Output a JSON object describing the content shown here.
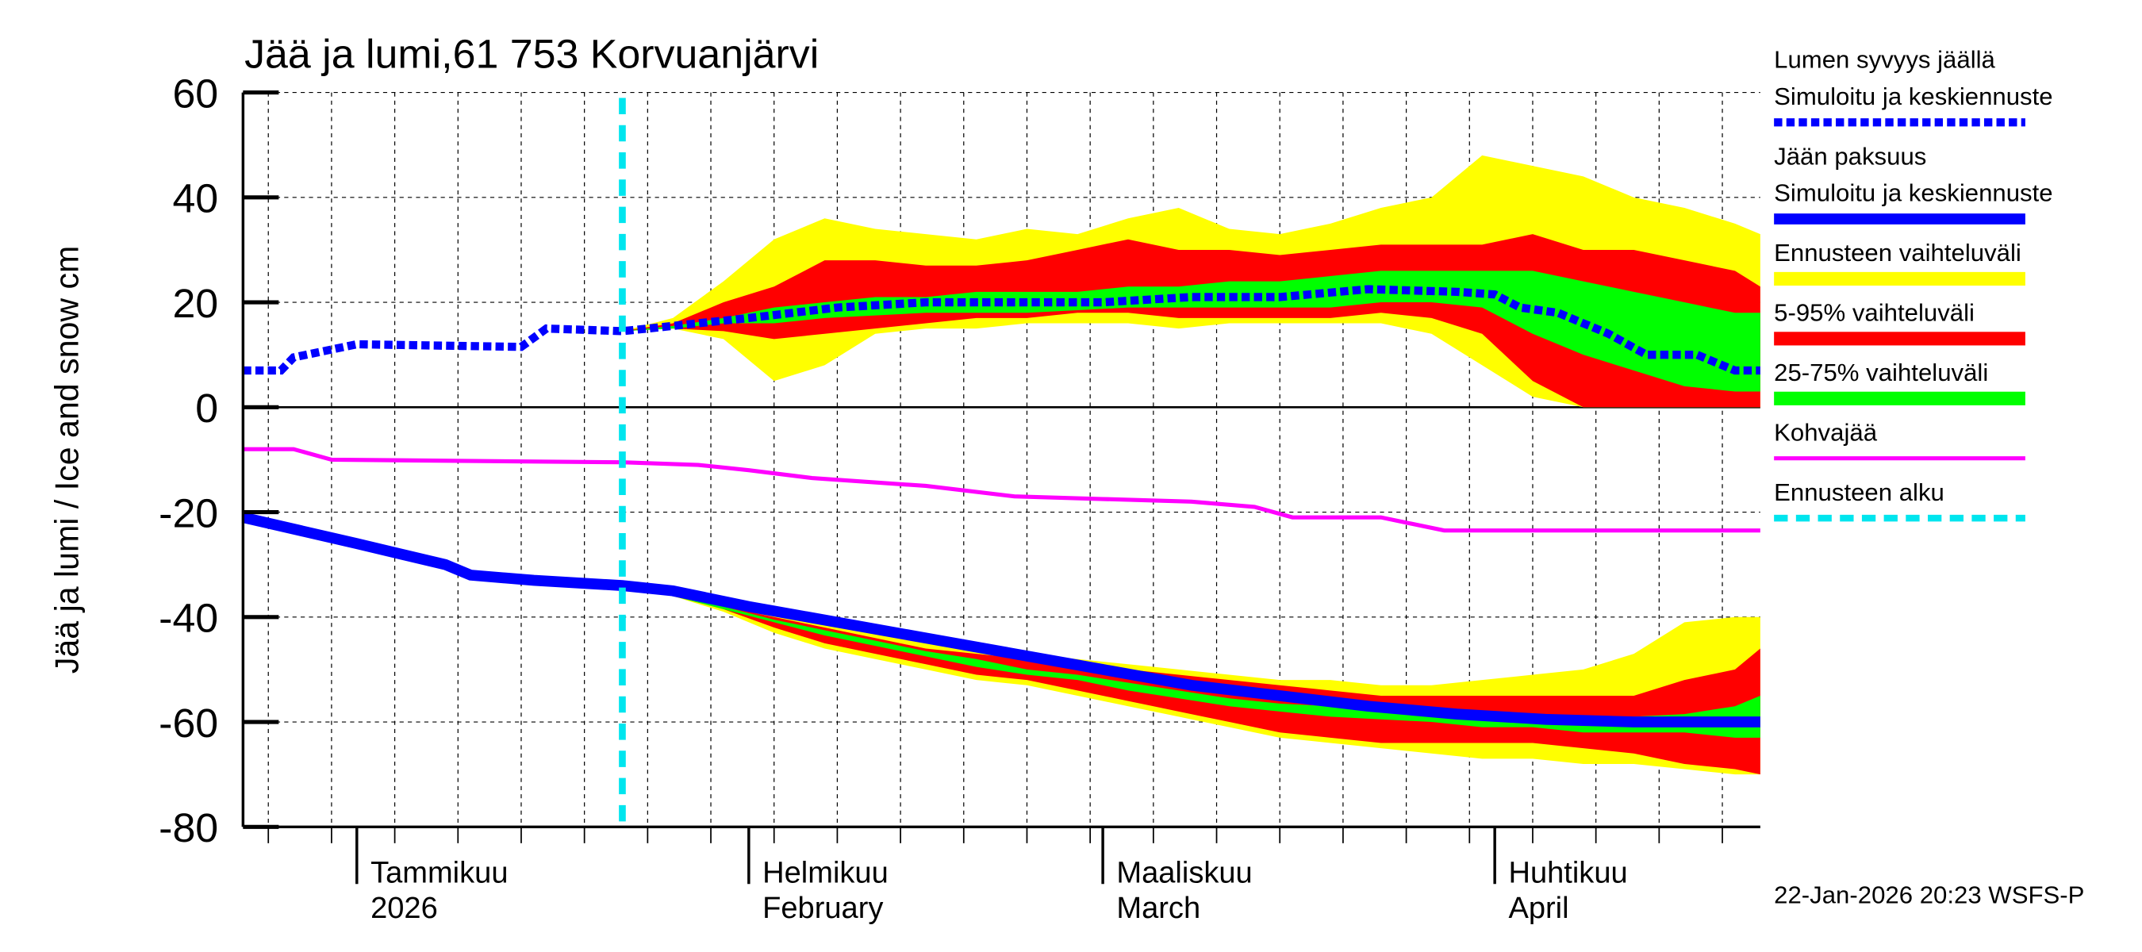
{
  "chart_data": {
    "type": "area",
    "title": "Jää ja lumi,61 753 Korvuanjärvi",
    "ylabel": "Jää ja lumi / Ice and snow    cm",
    "ylim": [
      -80,
      60
    ],
    "yticks": [
      60,
      40,
      20,
      0,
      -20,
      -40,
      -60,
      -80
    ],
    "xlim": [
      "2025-12-23",
      "2026-04-22"
    ],
    "grid": true,
    "legend_position": "right",
    "month_labels": [
      {
        "date": "2026-01-01",
        "fi": "Tammikuu",
        "en": "2026"
      },
      {
        "date": "2026-02-01",
        "fi": "Helmikuu",
        "en": "February"
      },
      {
        "date": "2026-03-01",
        "fi": "Maaliskuu",
        "en": "March"
      },
      {
        "date": "2026-04-01",
        "fi": "Huhtikuu",
        "en": "April"
      }
    ],
    "forecast_start": "2026-01-22",
    "footer": "22-Jan-2026 20:23 WSFS-P",
    "legend": [
      {
        "label1": "Lumen syvyys jäällä",
        "label2": "Simuloitu ja keskiennuste",
        "style": "dotted",
        "color": "#0000ff"
      },
      {
        "label1": "Jään paksuus",
        "label2": "Simuloitu ja keskiennuste",
        "style": "solid-thick",
        "color": "#0000ff"
      },
      {
        "label1": "Ennusteen vaihteluväli",
        "style": "band",
        "color": "#ffff00"
      },
      {
        "label1": "5-95% vaihteluväli",
        "style": "band",
        "color": "#ff0000"
      },
      {
        "label1": "25-75% vaihteluväli",
        "style": "band",
        "color": "#00ff00"
      },
      {
        "label1": "Kohvajää",
        "style": "solid",
        "color": "#ff00ff"
      },
      {
        "label1": "Ennusteen alku",
        "style": "dashed",
        "color": "#00e5ee"
      }
    ],
    "snow_depth": {
      "x": [
        "2025-12-23",
        "2025-12-26",
        "2025-12-27",
        "2025-12-30",
        "2026-01-01",
        "2026-01-14",
        "2026-01-16",
        "2026-01-22",
        "2026-01-26",
        "2026-02-01",
        "2026-02-08",
        "2026-02-15",
        "2026-02-22",
        "2026-03-01",
        "2026-03-08",
        "2026-03-15",
        "2026-03-22",
        "2026-03-29",
        "2026-04-01",
        "2026-04-03",
        "2026-04-06",
        "2026-04-10",
        "2026-04-13",
        "2026-04-17",
        "2026-04-20",
        "2026-04-22"
      ],
      "y": [
        7,
        7,
        9.5,
        11,
        12,
        11.5,
        15,
        14.5,
        15.5,
        17,
        19,
        20,
        20,
        20,
        21,
        21,
        22.5,
        22,
        21.5,
        19,
        18,
        14,
        10,
        10,
        7,
        7
      ]
    },
    "ice_thickness": {
      "x": [
        "2025-12-23",
        "2026-01-01",
        "2026-01-08",
        "2026-01-10",
        "2026-01-15",
        "2026-01-22",
        "2026-01-26",
        "2026-02-01",
        "2026-02-08",
        "2026-02-15",
        "2026-02-22",
        "2026-03-01",
        "2026-03-08",
        "2026-03-15",
        "2026-03-22",
        "2026-03-29",
        "2026-04-05",
        "2026-04-12",
        "2026-04-22"
      ],
      "y": [
        -21,
        -26,
        -30,
        -32,
        -33,
        -34,
        -35,
        -38,
        -41,
        -44,
        -47,
        -50,
        -53,
        -55,
        -57,
        -58.5,
        -59.5,
        -60,
        -60
      ]
    },
    "slush_ice": {
      "x": [
        "2025-12-23",
        "2025-12-27",
        "2025-12-30",
        "2026-01-22",
        "2026-01-28",
        "2026-02-01",
        "2026-02-06",
        "2026-02-15",
        "2026-02-22",
        "2026-03-01",
        "2026-03-08",
        "2026-03-13",
        "2026-03-16",
        "2026-03-23",
        "2026-03-28",
        "2026-04-22"
      ],
      "y": [
        -8,
        -8,
        -10,
        -10.5,
        -11,
        -12,
        -13.5,
        -15,
        -17,
        -17.5,
        -18,
        -19,
        -21,
        -21,
        -23.5,
        -23.5
      ]
    },
    "band_dates": [
      "2026-01-22",
      "2026-01-26",
      "2026-01-30",
      "2026-02-03",
      "2026-02-07",
      "2026-02-11",
      "2026-02-15",
      "2026-02-19",
      "2026-02-23",
      "2026-02-27",
      "2026-03-03",
      "2026-03-07",
      "2026-03-11",
      "2026-03-15",
      "2026-03-19",
      "2026-03-23",
      "2026-03-27",
      "2026-03-31",
      "2026-04-04",
      "2026-04-08",
      "2026-04-12",
      "2026-04-16",
      "2026-04-20",
      "2026-04-22"
    ],
    "snow_bands": {
      "range_hi": [
        14.5,
        17,
        24,
        32,
        36,
        34,
        33,
        32,
        34,
        33,
        36,
        38,
        34,
        33,
        35,
        38,
        40,
        48,
        46,
        44,
        40,
        38,
        35,
        33
      ],
      "range_lo": [
        14.5,
        15,
        13,
        5,
        8,
        14,
        15,
        15,
        16,
        16,
        16,
        15,
        16,
        16,
        16,
        16,
        14,
        8,
        2,
        0,
        0,
        0,
        0,
        0
      ],
      "p95": [
        14.5,
        16,
        20,
        23,
        28,
        28,
        27,
        27,
        28,
        30,
        32,
        30,
        30,
        29,
        30,
        31,
        31,
        31,
        33,
        30,
        30,
        28,
        26,
        23
      ],
      "p5": [
        14.5,
        15,
        14.5,
        13,
        14,
        15,
        16,
        17,
        17,
        18,
        18,
        17,
        17,
        17,
        17,
        18,
        17,
        14,
        5,
        0,
        0,
        0,
        0,
        0
      ],
      "p75": [
        14.5,
        15.5,
        17,
        19,
        20,
        21,
        21,
        22,
        22,
        22,
        23,
        23,
        24,
        24,
        25,
        26,
        26,
        26,
        26,
        24,
        22,
        20,
        18,
        18
      ],
      "p25": [
        14.5,
        15,
        16,
        16,
        17,
        17.5,
        18,
        18,
        18,
        18.5,
        19,
        19,
        19,
        19,
        19,
        20,
        20,
        19,
        14,
        10,
        7,
        4,
        3,
        3
      ]
    },
    "ice_bands": {
      "range_hi": [
        -34,
        -36,
        -38,
        -39,
        -41,
        -43,
        -45,
        -46,
        -47,
        -48,
        -49,
        -50,
        -51,
        -52,
        -52,
        -53,
        -53,
        -52,
        -51,
        -50,
        -47,
        -41,
        -40,
        -40
      ],
      "range_lo": [
        -34,
        -36,
        -39,
        -43,
        -46,
        -48,
        -50,
        -52,
        -53,
        -55,
        -57,
        -59,
        -61,
        -63,
        -64,
        -65,
        -66,
        -67,
        -67,
        -68,
        -68,
        -69,
        -70,
        -70
      ],
      "p95": [
        -34,
        -36,
        -38,
        -40,
        -42,
        -44,
        -46,
        -47,
        -48,
        -49,
        -50,
        -51,
        -52,
        -53,
        -54,
        -55,
        -55,
        -55,
        -55,
        -55,
        -55,
        -52,
        -50,
        -46
      ],
      "p5": [
        -34,
        -36,
        -38.5,
        -42,
        -45,
        -47,
        -49,
        -51,
        -52,
        -54,
        -56,
        -58,
        -60,
        -62,
        -63,
        -64,
        -64,
        -64,
        -64,
        -65,
        -66,
        -68,
        -69,
        -70
      ],
      "p75": [
        -34,
        -36,
        -38,
        -40.5,
        -42.5,
        -44.5,
        -46.5,
        -48,
        -50,
        -51,
        -52.5,
        -54,
        -55.5,
        -56.5,
        -57,
        -57.5,
        -58,
        -58.5,
        -58.5,
        -59,
        -59,
        -58.5,
        -57,
        -55
      ],
      "p25": [
        -34,
        -36,
        -38.5,
        -41,
        -43.5,
        -45.5,
        -47.5,
        -49.5,
        -51,
        -52,
        -54,
        -55.5,
        -57,
        -58,
        -59,
        -59.5,
        -60,
        -61,
        -61,
        -62,
        -62,
        -62,
        -63,
        -63
      ]
    }
  }
}
